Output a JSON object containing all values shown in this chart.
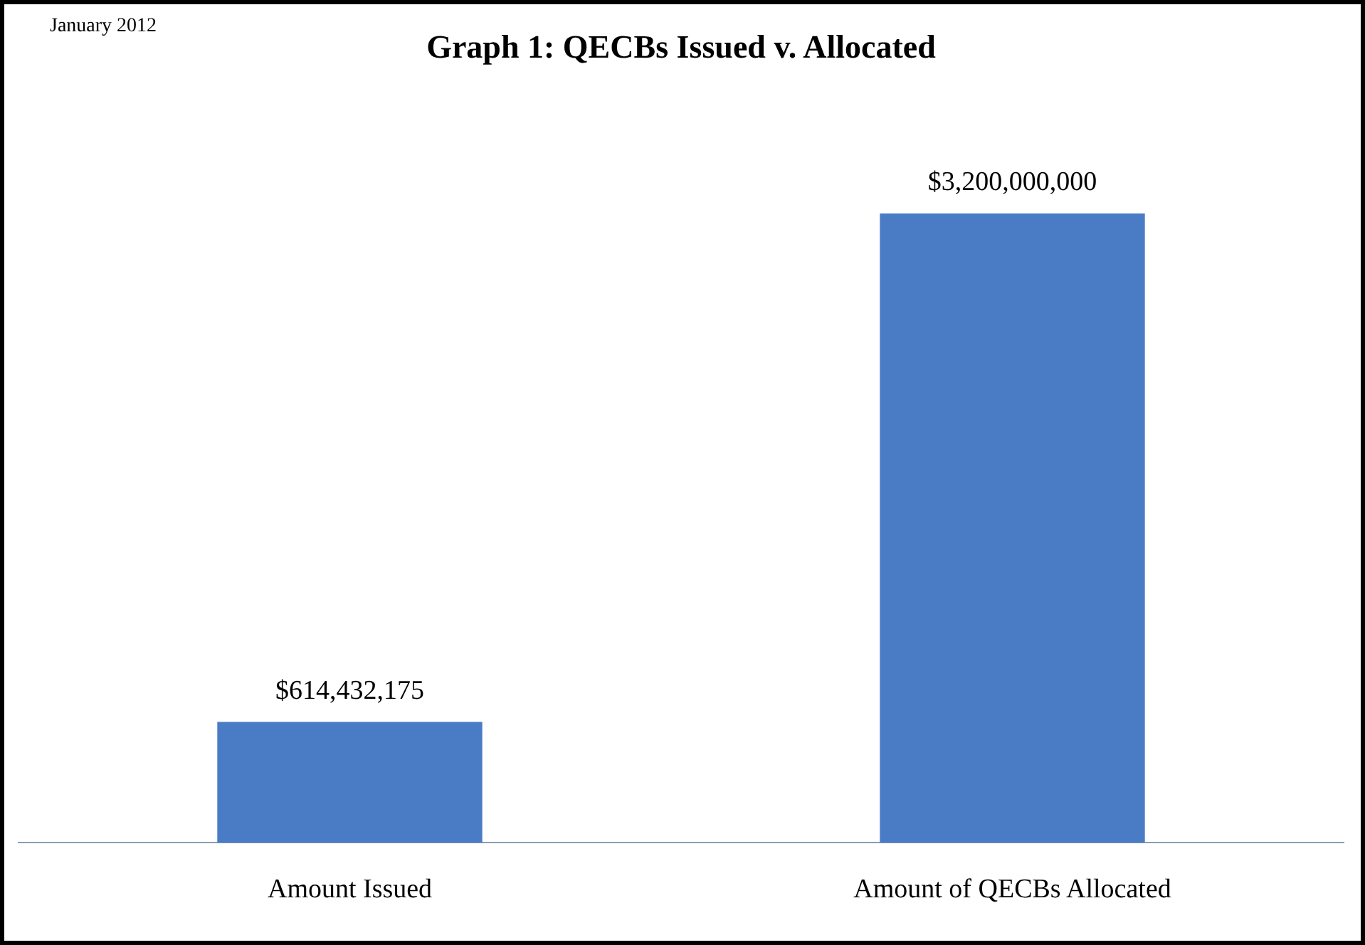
{
  "chart_data": {
    "type": "bar",
    "title": "Graph 1: QECBs Issued v. Allocated",
    "annotations": [
      "January 2012"
    ],
    "categories": [
      "Amount Issued",
      "Amount of QECBs Allocated"
    ],
    "values": [
      614432175,
      3200000000
    ],
    "color": "#4a7cc6",
    "value_labels": [
      "$614,432,175",
      "$3,200,000,000"
    ],
    "grid": false,
    "legend": false
  }
}
